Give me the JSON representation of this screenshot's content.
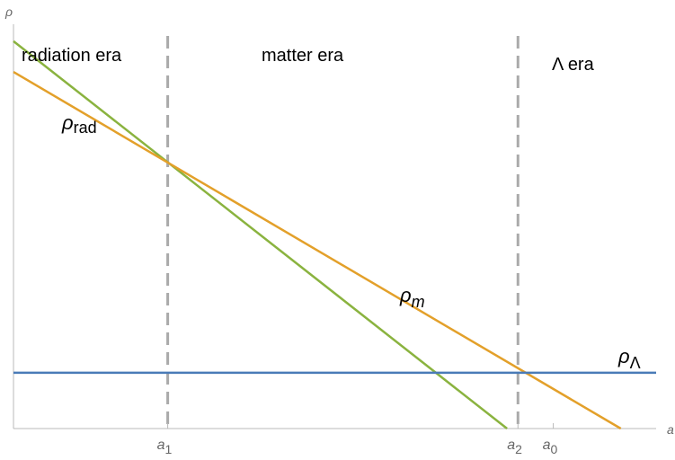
{
  "chart_data": {
    "type": "line",
    "title": "",
    "xlabel": "a",
    "ylabel": "ρ",
    "xlim": [
      0,
      10
    ],
    "ylim": [
      0,
      10
    ],
    "grid": false,
    "legend": "inline labels",
    "colors": {
      "rad": "#8ab33f",
      "m": "#e3a02a",
      "lambda": "#4a7bb7",
      "divider": "#aaaaaa",
      "axis": "#b8b8b8"
    },
    "series": [
      {
        "key": "rad",
        "name": "ρrad",
        "label_base": "ρ",
        "label_sub": "rad",
        "x": [
          0,
          7.68
        ],
        "y": [
          9.58,
          0
        ]
      },
      {
        "key": "m",
        "name": "ρm",
        "label_base": "ρ",
        "label_sub": "m",
        "x": [
          0,
          9.45
        ],
        "y": [
          8.82,
          0
        ]
      },
      {
        "key": "lambda",
        "name": "ρΛ",
        "label_base": "ρ",
        "label_sub": "Λ",
        "x": [
          0,
          10
        ],
        "y": [
          1.38,
          1.38
        ]
      }
    ],
    "ticks": [
      {
        "key": "a1",
        "base": "a",
        "sub": "1",
        "x": 2.4
      },
      {
        "key": "a2",
        "base": "a",
        "sub": "2",
        "x": 7.85
      },
      {
        "key": "a0",
        "base": "a",
        "sub": "0",
        "x": 8.4
      }
    ],
    "dividers": [
      2.4,
      7.85
    ],
    "eras": [
      {
        "key": "radiation",
        "label": "radiation era"
      },
      {
        "key": "matter",
        "label": "matter era"
      },
      {
        "key": "lambda",
        "label": "Λ era"
      }
    ]
  }
}
